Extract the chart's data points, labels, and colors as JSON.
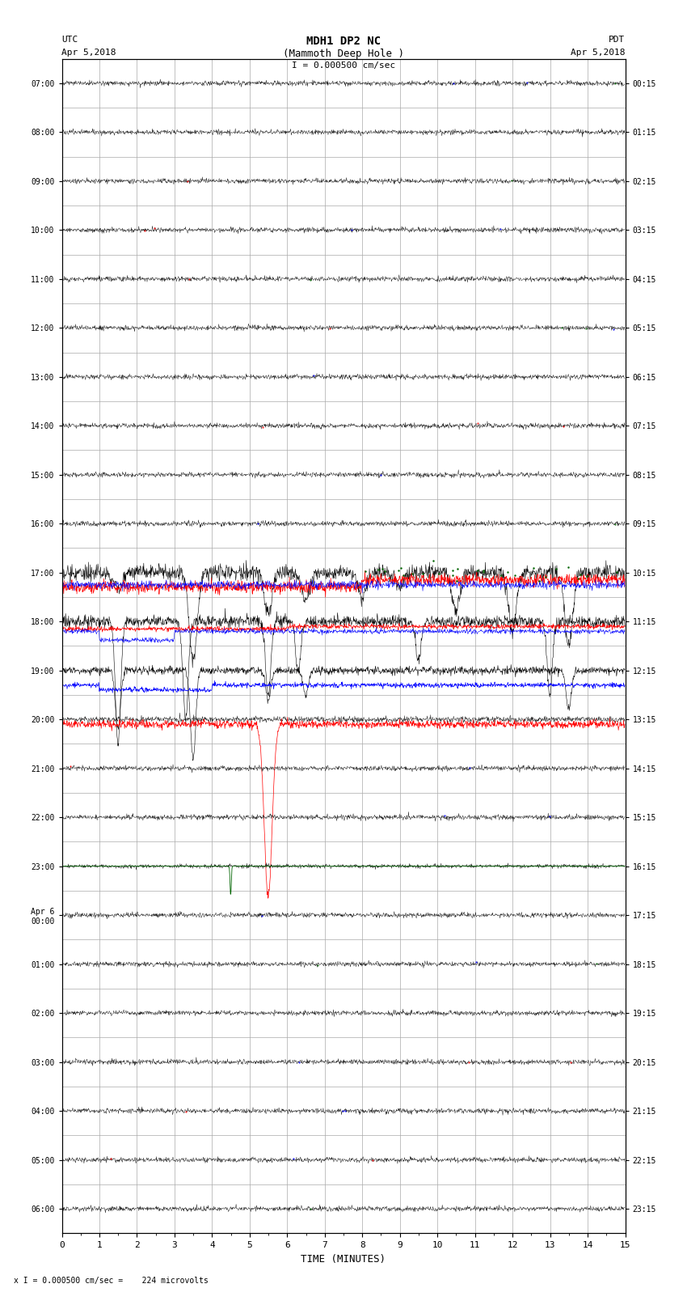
{
  "title_line1": "MDH1 DP2 NC",
  "title_line2": "(Mammoth Deep Hole )",
  "title_scale": "I = 0.000500 cm/sec",
  "left_header": "UTC\nApr 5,2018",
  "right_header": "PDT\nApr 5,2018",
  "xlabel": "TIME (MINUTES)",
  "footer": "x I = 0.000500 cm/sec =    224 microvolts",
  "utc_labels": [
    "07:00",
    "08:00",
    "09:00",
    "10:00",
    "11:00",
    "12:00",
    "13:00",
    "14:00",
    "15:00",
    "16:00",
    "17:00",
    "18:00",
    "19:00",
    "20:00",
    "21:00",
    "22:00",
    "23:00",
    "Apr 6\n00:00",
    "01:00",
    "02:00",
    "03:00",
    "04:00",
    "05:00",
    "06:00"
  ],
  "pdt_labels": [
    "00:15",
    "01:15",
    "02:15",
    "03:15",
    "04:15",
    "05:15",
    "06:15",
    "07:15",
    "08:15",
    "09:15",
    "10:15",
    "11:15",
    "12:15",
    "13:15",
    "14:15",
    "15:15",
    "16:15",
    "17:15",
    "18:15",
    "19:15",
    "20:15",
    "21:15",
    "22:15",
    "23:15"
  ],
  "n_rows": 24,
  "xmin": 0,
  "xmax": 15,
  "bg_color": "#ffffff",
  "grid_color": "#aaaaaa",
  "trace_color_normal": "#000000",
  "trace_color_red": "#ff0000",
  "trace_color_blue": "#0000ff",
  "trace_color_green": "#006400"
}
